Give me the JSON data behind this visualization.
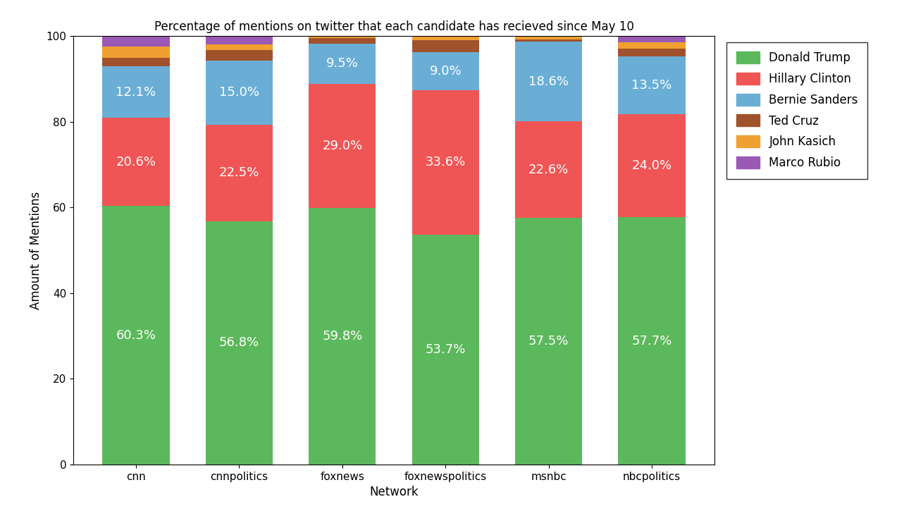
{
  "categories": [
    "cnn",
    "cnnpolitics",
    "foxnews",
    "foxnewspolitics",
    "msnbc",
    "nbcpolitics"
  ],
  "candidates": [
    "Donald Trump",
    "Hillary Clinton",
    "Bernie Sanders",
    "Ted Cruz",
    "John Kasich",
    "Marco Rubio"
  ],
  "colors": [
    "#5cb85c",
    "#f05555",
    "#6aaed6",
    "#a0522d",
    "#f0a030",
    "#9b59b6"
  ],
  "values": {
    "Donald Trump": [
      60.3,
      56.8,
      59.8,
      53.7,
      57.5,
      57.7
    ],
    "Hillary Clinton": [
      20.6,
      22.5,
      29.0,
      33.6,
      22.6,
      24.0
    ],
    "Bernie Sanders": [
      12.1,
      15.0,
      9.5,
      9.0,
      18.6,
      13.5
    ],
    "Ted Cruz": [
      2.0,
      2.5,
      1.2,
      2.7,
      0.5,
      1.8
    ],
    "John Kasich": [
      2.5,
      1.2,
      0.5,
      1.0,
      0.8,
      1.5
    ],
    "Marco Rubio": [
      2.5,
      2.0,
      0.0,
      0.0,
      0.0,
      1.5
    ]
  },
  "title": "Percentage of mentions on twitter that each candidate has recieved since May 10",
  "xlabel": "Network",
  "ylabel": "Amount of Mentions",
  "ylim": [
    0,
    100
  ],
  "label_fontsize": 12,
  "title_fontsize": 12,
  "tick_fontsize": 11,
  "legend_fontsize": 12,
  "bar_label_fontsize": 13,
  "bar_label_color": "white",
  "show_labels": [
    "Donald Trump",
    "Hillary Clinton",
    "Bernie Sanders"
  ],
  "background_color": "#ffffff",
  "bar_width": 0.65
}
